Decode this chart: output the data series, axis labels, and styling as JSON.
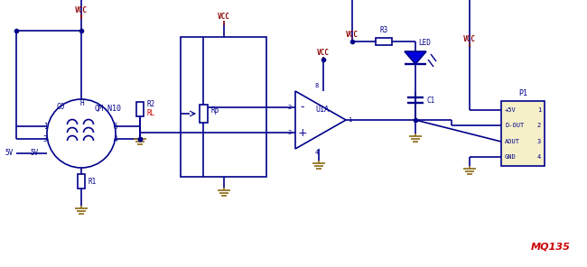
{
  "bg_color": "#ffffff",
  "line_color": "#00008B",
  "line_width": 1.2,
  "vcc_color": "#8B0000",
  "red_color": "#CC0000",
  "gnd_color": "#8B6914",
  "led_color": "#0000CC",
  "title": "MQ135",
  "title_color": "#CC0000",
  "text_color": "#00008B",
  "connector_fill": "#F5F0C8",
  "sensor_label": "QM-N10",
  "pin_labels_p1": [
    "+5V",
    "D-OUT",
    "AOUT",
    "GND"
  ],
  "pin_numbers_p1": [
    "1",
    "2",
    "3",
    "4"
  ]
}
